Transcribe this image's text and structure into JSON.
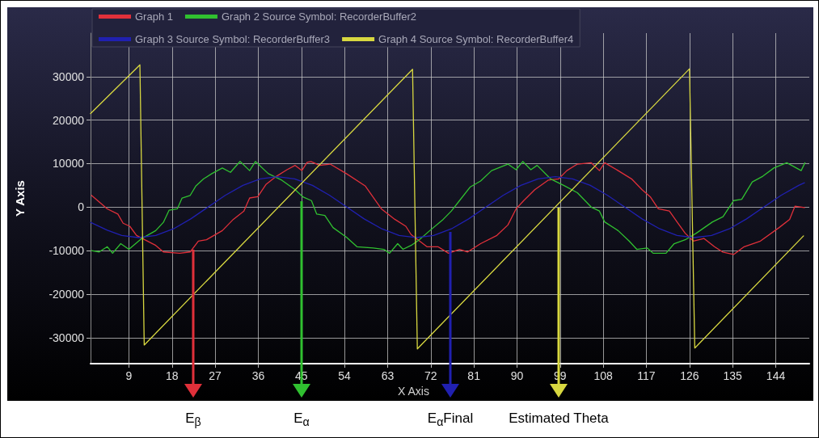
{
  "chart_data": {
    "type": "line",
    "xlabel": "X Axis",
    "ylabel": "Y Axis",
    "xlim": [
      1,
      151
    ],
    "xticks": [
      9,
      18,
      27,
      36,
      45,
      54,
      63,
      72,
      81,
      90,
      99,
      108,
      117,
      126,
      135,
      144
    ],
    "ylim": [
      -36000,
      40000
    ],
    "yticks": [
      -30000,
      -20000,
      -10000,
      0,
      10000,
      20000,
      30000
    ],
    "grid": true,
    "legend": "top left",
    "series": [
      {
        "name": "Graph 1",
        "color": "#e0303a",
        "x": [
          1.2,
          4.5,
          6.7,
          7.8,
          9.2,
          10.6,
          12.3,
          14.6,
          16.2,
          19.6,
          21.8,
          23.5,
          25.2,
          28.5,
          30.8,
          33,
          34.2,
          35.9,
          37.6,
          39.8,
          42,
          43.7,
          45.1,
          46.2,
          47,
          48.8,
          51,
          54.4,
          58.3,
          61.7,
          64.5,
          66.8,
          67.9,
          71.2,
          73.5,
          75.7,
          78,
          79.7,
          82.4,
          85.8,
          88.1,
          89.8,
          91.4,
          93.7,
          96.5,
          98.7,
          100.4,
          102.6,
          105.5,
          107.2,
          108.3,
          111.1,
          113.9,
          116.1,
          117.8,
          119.5,
          121.8,
          123.4,
          125.1,
          126.8,
          129,
          131.2,
          132.9,
          135.2,
          137.4,
          140.8,
          144.7,
          146.9,
          148,
          150
        ],
        "values": [
          2700,
          -400,
          -1600,
          -3700,
          -4400,
          -6500,
          -7500,
          -8800,
          -10300,
          -10600,
          -10300,
          -7800,
          -7500,
          -5400,
          -2800,
          -900,
          2100,
          2400,
          5200,
          7100,
          8600,
          9600,
          8400,
          10300,
          10500,
          9600,
          9900,
          7700,
          4900,
          -400,
          -2800,
          -4400,
          -6300,
          -9100,
          -9100,
          -10600,
          -9700,
          -10300,
          -8400,
          -6500,
          -4100,
          -400,
          1500,
          4000,
          6200,
          6500,
          8400,
          9900,
          10200,
          8400,
          10200,
          8400,
          6500,
          4000,
          2400,
          -400,
          -900,
          -3400,
          -6000,
          -7800,
          -7200,
          -9100,
          -10300,
          -10900,
          -9100,
          -7800,
          -4700,
          -2800,
          200,
          -100
        ]
      },
      {
        "name": "Graph 2 Source Symbol: RecorderBuffer2",
        "color": "#30c030",
        "x": [
          1.2,
          2.8,
          4.5,
          5.6,
          7.3,
          9,
          11.7,
          14.6,
          16.2,
          17.4,
          19.1,
          20.1,
          21.8,
          23,
          24.6,
          26.3,
          28.5,
          30.2,
          32.2,
          34.2,
          35.4,
          38.1,
          40.9,
          43.7,
          45.4,
          47.1,
          48.2,
          49.9,
          51.6,
          54.4,
          56.6,
          60,
          62.2,
          63.4,
          65.1,
          66.2,
          67.9,
          69.6,
          71.8,
          74.6,
          76.3,
          78,
          80.2,
          82.4,
          84.7,
          88.1,
          89.8,
          91.2,
          92.9,
          94.2,
          97,
          99.9,
          102.6,
          105.5,
          107.2,
          108.3,
          111.1,
          113.4,
          115,
          117.2,
          118.4,
          121.1,
          122.8,
          125.1,
          127.4,
          130.8,
          133,
          135.2,
          136.9,
          139.1,
          141.3,
          143.6,
          146.3,
          149.3,
          150.1
        ],
        "values": [
          -10000,
          -10300,
          -9100,
          -10600,
          -8400,
          -9700,
          -7200,
          -5400,
          -3500,
          -700,
          -400,
          2100,
          2700,
          4900,
          6500,
          7700,
          9000,
          8000,
          10500,
          8400,
          10500,
          7700,
          6200,
          4000,
          2300,
          1500,
          -1600,
          -1900,
          -4700,
          -6900,
          -9100,
          -9400,
          -9700,
          -10600,
          -8400,
          -9700,
          -8800,
          -7500,
          -5400,
          -2800,
          -900,
          1500,
          4600,
          6000,
          8400,
          9900,
          8600,
          10500,
          8600,
          9600,
          6500,
          4900,
          3300,
          0,
          -900,
          -3400,
          -5400,
          -7800,
          -9700,
          -9400,
          -10600,
          -10600,
          -8400,
          -7500,
          -6000,
          -3400,
          -2200,
          1500,
          1800,
          5800,
          7100,
          9000,
          10200,
          8400,
          10200
        ]
      },
      {
        "name": "Graph 3 Source Symbol: RecorderBuffer3",
        "color": "#2020b0",
        "x": [
          1,
          4.5,
          7.5,
          11,
          14.6,
          18.3,
          21.9,
          25.5,
          29.1,
          32.8,
          36.4,
          40,
          43.6,
          47.3,
          50.9,
          54.5,
          58.1,
          61.8,
          65.4,
          69,
          72.6,
          76.3,
          79.9,
          83.5,
          87.1,
          90.8,
          94.4,
          98,
          101.6,
          105.3,
          108.9,
          112.5,
          116.1,
          119.8,
          123.4,
          127,
          130.6,
          134.3,
          137.9,
          141.5,
          145.1,
          148.8,
          150
        ],
        "values": [
          -3500,
          -5300,
          -6500,
          -7000,
          -6500,
          -5000,
          -2700,
          0,
          2700,
          5000,
          6500,
          7000,
          6500,
          5000,
          2700,
          0,
          -2700,
          -5000,
          -6500,
          -7000,
          -6500,
          -5000,
          -2700,
          0,
          2700,
          5000,
          6500,
          7000,
          6500,
          5000,
          2700,
          0,
          -2700,
          -5000,
          -6500,
          -7000,
          -6500,
          -5000,
          -2700,
          0,
          2700,
          5000,
          5600
        ]
      },
      {
        "name": "Graph 4 Source Symbol: RecorderBuffer4",
        "color": "#d8d840",
        "x": [
          1,
          11.3,
          12.2,
          68.2,
          69.2,
          126,
          127.1,
          149.8
        ],
        "values": [
          21500,
          32700,
          -31700,
          31700,
          -32600,
          31800,
          -32400,
          -6600
        ]
      }
    ],
    "annotations": [
      "E$_{β}$",
      "E$_{α}$",
      "E$_{α}$Final",
      "Estimated Theta"
    ]
  }
}
